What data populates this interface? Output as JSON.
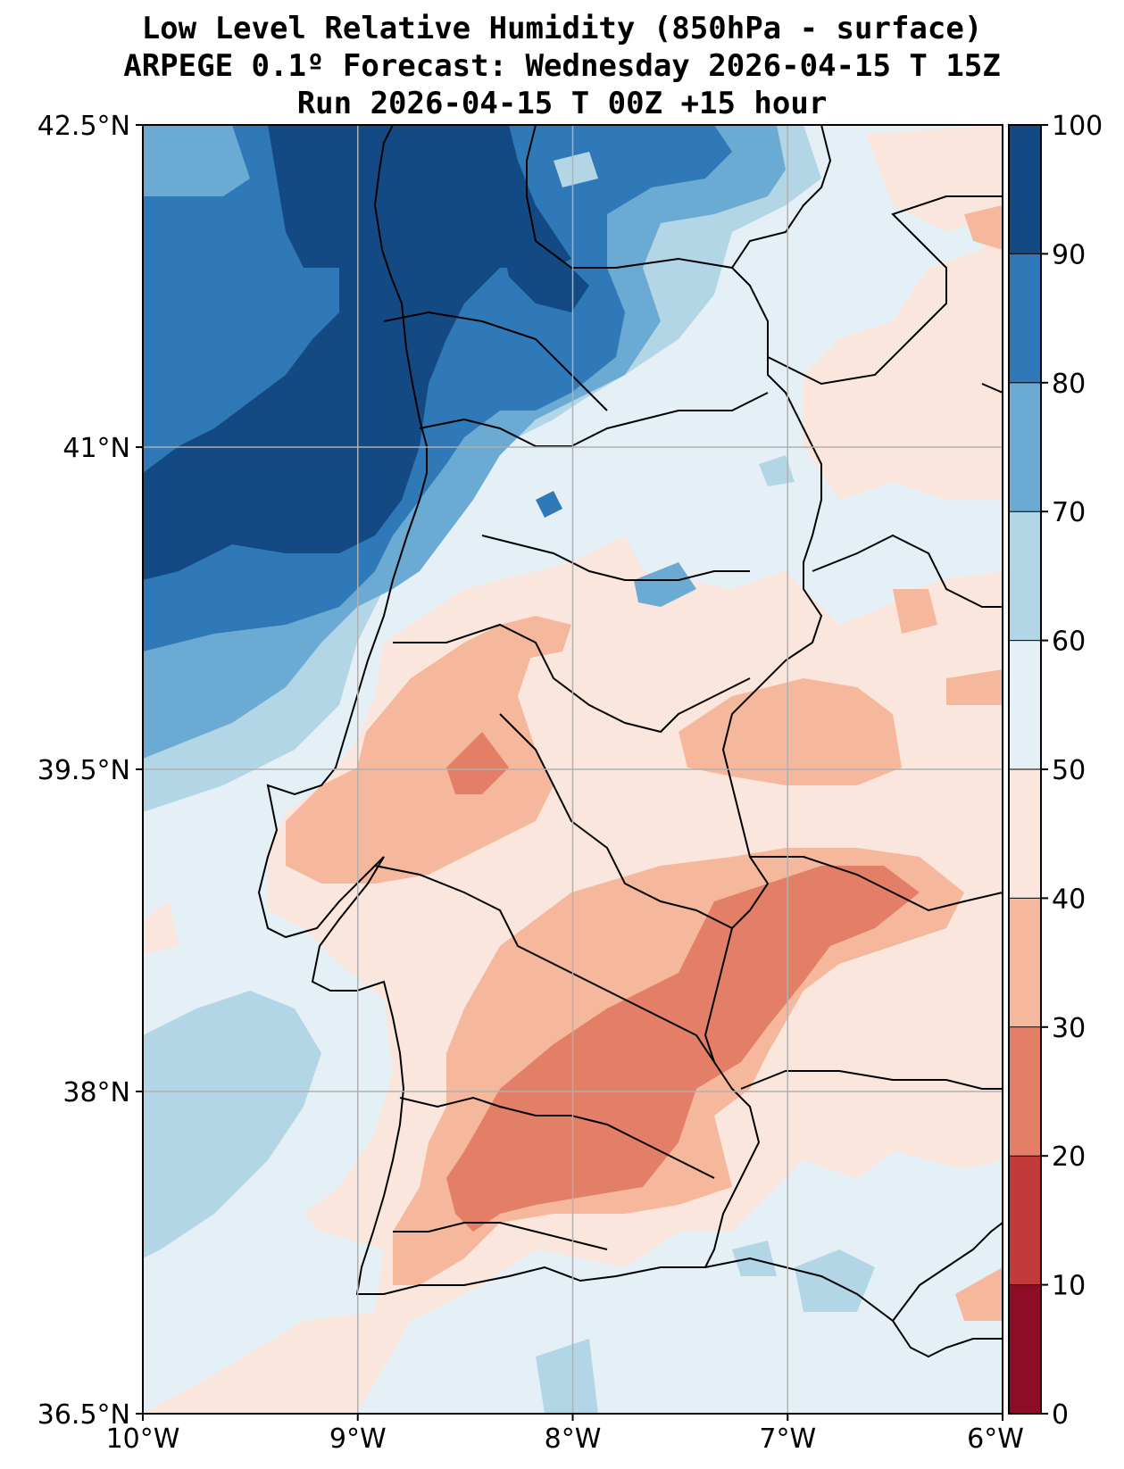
{
  "title": {
    "line1": "Low Level Relative Humidity (850hPa - surface)",
    "line2": "ARPEGE 0.1º Forecast: Wednesday 2026-04-15 T 15Z",
    "line3": "Run 2026-04-15 T 00Z +15 hour"
  },
  "map": {
    "lat_labels": [
      "42.5°N",
      "41°N",
      "39.5°N",
      "38°N",
      "36.5°N"
    ],
    "lon_labels": [
      "10°W",
      "9°W",
      "8°W",
      "7°W",
      "6°W"
    ],
    "lat_range": [
      36.5,
      42.5
    ],
    "lon_range": [
      -10,
      -6
    ]
  },
  "colorbar": {
    "labels": [
      "100",
      "90",
      "80",
      "70",
      "60",
      "50",
      "40",
      "30",
      "20",
      "10",
      "0"
    ],
    "levels": [
      0,
      10,
      20,
      30,
      40,
      50,
      60,
      70,
      80,
      90,
      100
    ],
    "colors": [
      "#8c0d25",
      "#c23b3a",
      "#e47f67",
      "#f6b89c",
      "#fae6dd",
      "#e5eff6",
      "#b3d6e7",
      "#6aaad3",
      "#3079b8",
      "#134a84"
    ]
  },
  "palette": {
    "rh_0_10": "#8c0d25",
    "rh_10_20": "#c23b3a",
    "rh_20_30": "#e47f67",
    "rh_30_40": "#f6b89c",
    "rh_40_50": "#fae6dd",
    "rh_50_60": "#e5eff6",
    "rh_60_70": "#b3d6e7",
    "rh_70_80": "#6aaad3",
    "rh_80_90": "#3079b8",
    "rh_90_100": "#134a84"
  }
}
